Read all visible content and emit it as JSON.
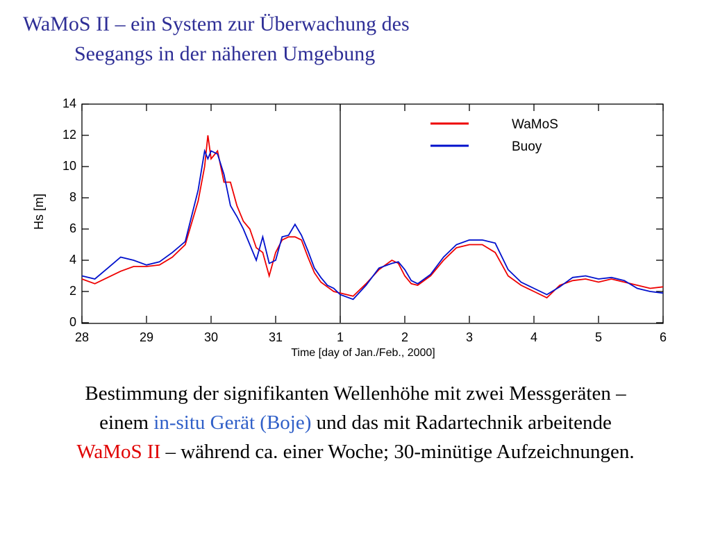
{
  "slide": {
    "title": [
      "WaMoS II – ein System zur Überwachung des",
      "Seegangs in der näheren Umgebung"
    ],
    "caption": [
      [
        {
          "text": "Bestimmung  der signifikanten Wellenhöhe mit zwei Messgeräten –",
          "color": "#000000"
        }
      ],
      [
        {
          "text": "einem ",
          "color": "#000000"
        },
        {
          "text": "in-situ Gerät (Boje)",
          "color": "#2f5fc8"
        },
        {
          "text": "  und das mit Radartechnik arbeitende",
          "color": "#000000"
        }
      ],
      [
        {
          "text": "WaMoS II",
          "color": "#e00000"
        },
        {
          "text": " – während ca. einer Woche; 30-minütige Aufzeichnungen.",
          "color": "#000000"
        }
      ]
    ]
  },
  "chart_data": {
    "type": "line",
    "xlabel": "Time [day of Jan./Feb., 2000]",
    "ylabel": "Hs [m]",
    "x": [
      0,
      0.2,
      0.4,
      0.6,
      0.8,
      1.0,
      1.2,
      1.4,
      1.6,
      1.8,
      1.9,
      1.95,
      2.0,
      2.1,
      2.2,
      2.3,
      2.4,
      2.5,
      2.6,
      2.7,
      2.8,
      2.9,
      3.0,
      3.1,
      3.2,
      3.3,
      3.4,
      3.5,
      3.6,
      3.7,
      3.8,
      3.9,
      4.0,
      4.2,
      4.4,
      4.6,
      4.8,
      4.9,
      5.0,
      5.1,
      5.2,
      5.4,
      5.6,
      5.8,
      6.0,
      6.2,
      6.4,
      6.6,
      6.8,
      7.0,
      7.2,
      7.4,
      7.6,
      7.8,
      8.0,
      8.2,
      8.4,
      8.6,
      8.8,
      9.0
    ],
    "series": [
      {
        "name": "WaMoS",
        "color": "#ee0000",
        "values": [
          2.8,
          2.5,
          2.9,
          3.3,
          3.6,
          3.6,
          3.7,
          4.2,
          5.0,
          7.8,
          10.0,
          12.0,
          10.5,
          11.0,
          9.0,
          9.0,
          7.5,
          6.5,
          6.0,
          4.8,
          4.5,
          3.0,
          4.5,
          5.3,
          5.5,
          5.5,
          5.3,
          4.2,
          3.2,
          2.6,
          2.3,
          2.0,
          1.9,
          1.7,
          2.5,
          3.4,
          4.0,
          3.8,
          3.0,
          2.5,
          2.4,
          3.0,
          4.0,
          4.8,
          5.0,
          5.0,
          4.5,
          3.0,
          2.4,
          2.0,
          1.6,
          2.4,
          2.7,
          2.8,
          2.6,
          2.8,
          2.6,
          2.4,
          2.2,
          2.3
        ]
      },
      {
        "name": "Buoy",
        "color": "#0010cc",
        "values": [
          3.0,
          2.8,
          3.5,
          4.2,
          4.0,
          3.7,
          3.9,
          4.5,
          5.2,
          8.5,
          11.0,
          10.5,
          11.0,
          10.8,
          9.5,
          7.5,
          6.8,
          6.0,
          5.0,
          4.0,
          5.5,
          3.8,
          4.0,
          5.5,
          5.6,
          6.3,
          5.6,
          4.6,
          3.5,
          2.9,
          2.4,
          2.2,
          1.8,
          1.5,
          2.4,
          3.5,
          3.8,
          3.9,
          3.4,
          2.7,
          2.5,
          3.1,
          4.2,
          5.0,
          5.3,
          5.3,
          5.1,
          3.4,
          2.6,
          2.2,
          1.8,
          2.3,
          2.9,
          3.0,
          2.8,
          2.9,
          2.7,
          2.2,
          2.0,
          1.9
        ]
      }
    ],
    "xlim": [
      0,
      9
    ],
    "xticks": [
      {
        "value": 0,
        "label": "28"
      },
      {
        "value": 1,
        "label": "29"
      },
      {
        "value": 2,
        "label": "30"
      },
      {
        "value": 3,
        "label": "31"
      },
      {
        "value": 4,
        "label": "1"
      },
      {
        "value": 5,
        "label": "2"
      },
      {
        "value": 6,
        "label": "3"
      },
      {
        "value": 7,
        "label": "4"
      },
      {
        "value": 8,
        "label": "5"
      },
      {
        "value": 9,
        "label": "6"
      }
    ],
    "ylim": [
      0,
      14
    ],
    "yticks": [
      0,
      2,
      4,
      6,
      8,
      10,
      12,
      14
    ],
    "legend": "upper-right",
    "grid": false
  }
}
